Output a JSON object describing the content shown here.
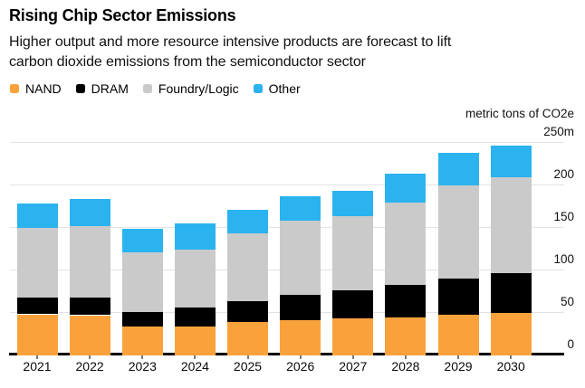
{
  "title": "Rising Chip Sector Emissions",
  "subtitle_lines": [
    "Higher output and more resource intensive products are forecast to lift",
    "carbon dioxide emissions from the semiconductor sector"
  ],
  "chart_data": {
    "type": "bar",
    "stacked": true,
    "categories": [
      "2021",
      "2022",
      "2023",
      "2024",
      "2025",
      "2026",
      "2027",
      "2028",
      "2029",
      "2030"
    ],
    "series": [
      {
        "name": "NAND",
        "color": "#F9A23C",
        "values": [
          47,
          46,
          33,
          33,
          38,
          40,
          42,
          43,
          47,
          49
        ]
      },
      {
        "name": "DRAM",
        "color": "#000000",
        "values": [
          20,
          21,
          17,
          22,
          24,
          30,
          33,
          39,
          42,
          46
        ]
      },
      {
        "name": "Foundry/Logic",
        "color": "#CACACA",
        "values": [
          82,
          84,
          70,
          68,
          80,
          87,
          87,
          97,
          110,
          113
        ]
      },
      {
        "name": "Other",
        "color": "#2BB3EF",
        "values": [
          28,
          32,
          28,
          31,
          28,
          29,
          30,
          34,
          38,
          38
        ]
      }
    ],
    "totals": [
      177,
      183,
      148,
      154,
      170,
      186,
      192,
      213,
      237,
      246
    ],
    "ylabel": "metric tons of CO2e",
    "y_ticks": [
      0,
      50,
      100,
      150,
      200,
      250
    ],
    "y_tick_labels": [
      "0",
      "50",
      "100",
      "150",
      "200",
      "250m"
    ],
    "ylim": [
      0,
      250
    ],
    "xlabel": "",
    "legend_position": "top",
    "grid": "horizontal",
    "axis_labels_side": "right"
  }
}
